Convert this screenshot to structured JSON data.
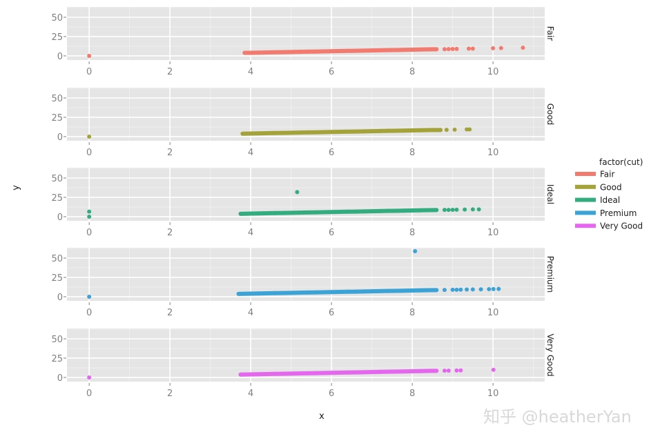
{
  "chart_data": {
    "type": "scatter",
    "facet_by": "cut",
    "xlabel": "x",
    "ylabel": "y",
    "xlim": [
      -0.55,
      11.28
    ],
    "ylim": [
      -5.4,
      63.4
    ],
    "x_ticks": [
      0,
      2,
      4,
      6,
      8,
      10
    ],
    "y_ticks": [
      0,
      25,
      50
    ],
    "grid": true,
    "legend": {
      "title": "factor(cut)",
      "position": "right",
      "entries": [
        "Fair",
        "Good",
        "Ideal",
        "Premium",
        "Very Good"
      ]
    },
    "series": [
      {
        "name": "Fair",
        "color": "#f27a6e",
        "points": [
          [
            0,
            0
          ],
          [
            3.85,
            4.0
          ],
          [
            4.0,
            4.0
          ],
          [
            4.2,
            4.2
          ],
          [
            4.4,
            4.4
          ],
          [
            4.6,
            4.6
          ],
          [
            4.8,
            4.8
          ],
          [
            5.0,
            5.0
          ],
          [
            5.2,
            5.2
          ],
          [
            5.4,
            5.4
          ],
          [
            5.6,
            5.6
          ],
          [
            5.8,
            5.8
          ],
          [
            6.0,
            6.0
          ],
          [
            6.2,
            6.2
          ],
          [
            6.4,
            6.4
          ],
          [
            6.6,
            6.6
          ],
          [
            6.8,
            6.8
          ],
          [
            7.0,
            7.0
          ],
          [
            7.2,
            7.2
          ],
          [
            7.4,
            7.4
          ],
          [
            7.6,
            7.6
          ],
          [
            7.8,
            7.8
          ],
          [
            8.0,
            8.0
          ],
          [
            8.2,
            8.2
          ],
          [
            8.4,
            8.4
          ],
          [
            8.6,
            8.6
          ],
          [
            8.8,
            8.7
          ],
          [
            8.9,
            8.8
          ],
          [
            9.0,
            8.9
          ],
          [
            9.1,
            9.0
          ],
          [
            9.4,
            9.3
          ],
          [
            9.5,
            9.3
          ],
          [
            10.0,
            9.9
          ],
          [
            10.2,
            10.1
          ],
          [
            10.74,
            10.54
          ]
        ]
      },
      {
        "name": "Good",
        "color": "#a3a33a",
        "points": [
          [
            0,
            0
          ],
          [
            3.8,
            3.8
          ],
          [
            4.0,
            4.0
          ],
          [
            4.2,
            4.2
          ],
          [
            4.4,
            4.4
          ],
          [
            4.6,
            4.6
          ],
          [
            4.8,
            4.8
          ],
          [
            5.0,
            5.0
          ],
          [
            5.2,
            5.2
          ],
          [
            5.4,
            5.4
          ],
          [
            5.6,
            5.6
          ],
          [
            5.8,
            5.8
          ],
          [
            6.0,
            6.0
          ],
          [
            6.2,
            6.2
          ],
          [
            6.4,
            6.4
          ],
          [
            6.6,
            6.6
          ],
          [
            6.8,
            6.8
          ],
          [
            7.0,
            7.0
          ],
          [
            7.2,
            7.2
          ],
          [
            7.4,
            7.4
          ],
          [
            7.6,
            7.6
          ],
          [
            7.8,
            7.8
          ],
          [
            8.0,
            8.0
          ],
          [
            8.2,
            8.2
          ],
          [
            8.4,
            8.4
          ],
          [
            8.6,
            8.6
          ],
          [
            8.7,
            8.6
          ],
          [
            8.85,
            8.8
          ],
          [
            9.05,
            9.0
          ],
          [
            9.35,
            9.3
          ],
          [
            9.42,
            9.35
          ]
        ]
      },
      {
        "name": "Ideal",
        "color": "#33ad80",
        "points": [
          [
            0,
            0
          ],
          [
            0,
            6.6
          ],
          [
            5.15,
            31.8
          ],
          [
            3.75,
            3.7
          ],
          [
            4.0,
            4.0
          ],
          [
            4.2,
            4.2
          ],
          [
            4.4,
            4.4
          ],
          [
            4.6,
            4.6
          ],
          [
            4.8,
            4.8
          ],
          [
            5.0,
            5.0
          ],
          [
            5.2,
            5.2
          ],
          [
            5.4,
            5.4
          ],
          [
            5.6,
            5.6
          ],
          [
            5.8,
            5.8
          ],
          [
            6.0,
            6.0
          ],
          [
            6.2,
            6.2
          ],
          [
            6.4,
            6.4
          ],
          [
            6.6,
            6.6
          ],
          [
            6.8,
            6.8
          ],
          [
            7.0,
            7.0
          ],
          [
            7.2,
            7.2
          ],
          [
            7.4,
            7.4
          ],
          [
            7.6,
            7.6
          ],
          [
            7.8,
            7.8
          ],
          [
            8.0,
            8.0
          ],
          [
            8.2,
            8.2
          ],
          [
            8.4,
            8.4
          ],
          [
            8.6,
            8.6
          ],
          [
            8.8,
            8.8
          ],
          [
            8.9,
            8.8
          ],
          [
            9.0,
            8.9
          ],
          [
            9.1,
            9.0
          ],
          [
            9.3,
            9.2
          ],
          [
            9.5,
            9.4
          ],
          [
            9.65,
            9.5
          ]
        ]
      },
      {
        "name": "Premium",
        "color": "#3ba3d6",
        "points": [
          [
            0,
            0
          ],
          [
            8.07,
            58.9
          ],
          [
            3.7,
            3.7
          ],
          [
            4.0,
            4.0
          ],
          [
            4.2,
            4.2
          ],
          [
            4.4,
            4.4
          ],
          [
            4.6,
            4.6
          ],
          [
            4.8,
            4.8
          ],
          [
            5.0,
            5.0
          ],
          [
            5.2,
            5.2
          ],
          [
            5.4,
            5.4
          ],
          [
            5.6,
            5.6
          ],
          [
            5.8,
            5.8
          ],
          [
            6.0,
            6.0
          ],
          [
            6.2,
            6.2
          ],
          [
            6.4,
            6.4
          ],
          [
            6.6,
            6.6
          ],
          [
            6.8,
            6.8
          ],
          [
            7.0,
            7.0
          ],
          [
            7.2,
            7.2
          ],
          [
            7.4,
            7.4
          ],
          [
            7.6,
            7.6
          ],
          [
            7.8,
            7.8
          ],
          [
            8.0,
            8.0
          ],
          [
            8.2,
            8.2
          ],
          [
            8.4,
            8.4
          ],
          [
            8.6,
            8.6
          ],
          [
            8.8,
            8.8
          ],
          [
            9.0,
            9.0
          ],
          [
            9.1,
            9.0
          ],
          [
            9.2,
            9.1
          ],
          [
            9.35,
            9.3
          ],
          [
            9.5,
            9.4
          ],
          [
            9.7,
            9.6
          ],
          [
            9.9,
            9.8
          ],
          [
            10.01,
            9.94
          ],
          [
            10.14,
            10.1
          ]
        ]
      },
      {
        "name": "Very Good",
        "color": "#e467ee",
        "points": [
          [
            0,
            0
          ],
          [
            3.75,
            3.8
          ],
          [
            4.0,
            4.0
          ],
          [
            4.2,
            4.2
          ],
          [
            4.4,
            4.4
          ],
          [
            4.6,
            4.6
          ],
          [
            4.8,
            4.8
          ],
          [
            5.0,
            5.0
          ],
          [
            5.2,
            5.2
          ],
          [
            5.4,
            5.4
          ],
          [
            5.6,
            5.6
          ],
          [
            5.8,
            5.8
          ],
          [
            6.0,
            6.0
          ],
          [
            6.2,
            6.2
          ],
          [
            6.4,
            6.4
          ],
          [
            6.6,
            6.6
          ],
          [
            6.8,
            6.8
          ],
          [
            7.0,
            7.0
          ],
          [
            7.2,
            7.2
          ],
          [
            7.4,
            7.4
          ],
          [
            7.6,
            7.6
          ],
          [
            7.8,
            7.8
          ],
          [
            8.0,
            8.0
          ],
          [
            8.2,
            8.2
          ],
          [
            8.4,
            8.4
          ],
          [
            8.6,
            8.6
          ],
          [
            8.8,
            8.8
          ],
          [
            8.9,
            8.8
          ],
          [
            9.1,
            9.0
          ],
          [
            9.2,
            9.1
          ],
          [
            10.01,
            9.94
          ]
        ]
      }
    ]
  },
  "watermark": "知乎 @heatherYan"
}
